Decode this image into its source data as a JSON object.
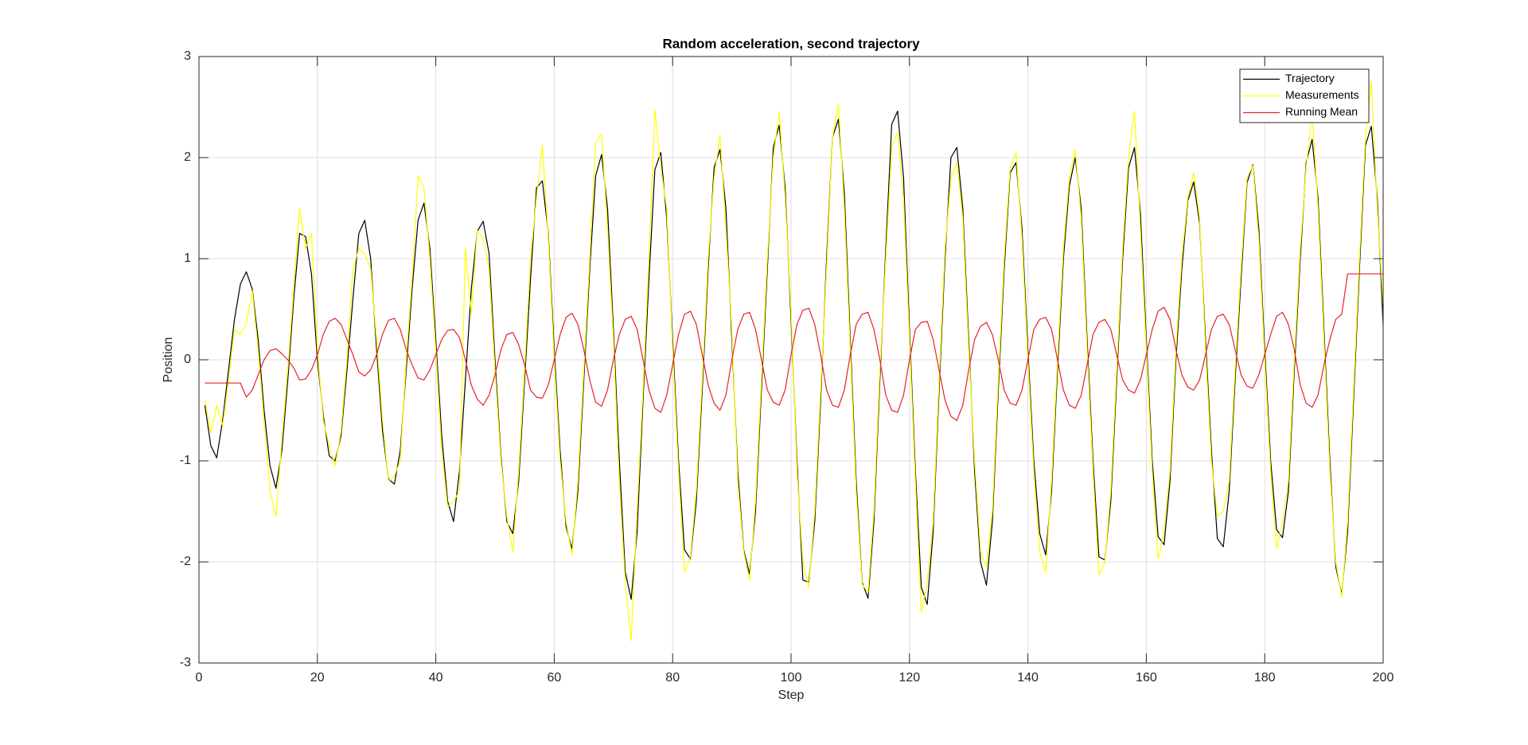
{
  "chart_data": {
    "type": "line",
    "title": "Random acceleration, second trajectory",
    "x_label": "Step",
    "y_label": "Position",
    "x": [
      1,
      2,
      3,
      4,
      5,
      6,
      7,
      8,
      9,
      10,
      11,
      12,
      13,
      14,
      15,
      16,
      17,
      18,
      19,
      20,
      21,
      22,
      23,
      24,
      25,
      26,
      27,
      28,
      29,
      30,
      31,
      32,
      33,
      34,
      35,
      36,
      37,
      38,
      39,
      40,
      41,
      42,
      43,
      44,
      45,
      46,
      47,
      48,
      49,
      50,
      51,
      52,
      53,
      54,
      55,
      56,
      57,
      58,
      59,
      60,
      61,
      62,
      63,
      64,
      65,
      66,
      67,
      68,
      69,
      70,
      71,
      72,
      73,
      74,
      75,
      76,
      77,
      78,
      79,
      80,
      81,
      82,
      83,
      84,
      85,
      86,
      87,
      88,
      89,
      90,
      91,
      92,
      93,
      94,
      95,
      96,
      97,
      98,
      99,
      100,
      101,
      102,
      103,
      104,
      105,
      106,
      107,
      108,
      109,
      110,
      111,
      112,
      113,
      114,
      115,
      116,
      117,
      118,
      119,
      120,
      121,
      122,
      123,
      124,
      125,
      126,
      127,
      128,
      129,
      130,
      131,
      132,
      133,
      134,
      135,
      136,
      137,
      138,
      139,
      140,
      141,
      142,
      143,
      144,
      145,
      146,
      147,
      148,
      149,
      150,
      151,
      152,
      153,
      154,
      155,
      156,
      157,
      158,
      159,
      160,
      161,
      162,
      163,
      164,
      165,
      166,
      167,
      168,
      169,
      170,
      171,
      172,
      173,
      174,
      175,
      176,
      177,
      178,
      179,
      180,
      181,
      182,
      183,
      184,
      185,
      186,
      187,
      188,
      189,
      190,
      191,
      192,
      193,
      194,
      195,
      196,
      197,
      198,
      199,
      200
    ],
    "series": [
      {
        "name": "Trajectory",
        "color": "#000000",
        "values": [
          -0.45,
          -0.85,
          -0.97,
          -0.6,
          -0.1,
          0.4,
          0.75,
          0.87,
          0.7,
          0.2,
          -0.5,
          -1.05,
          -1.27,
          -0.9,
          -0.2,
          0.6,
          1.25,
          1.22,
          0.85,
          0.0,
          -0.55,
          -0.95,
          -1.0,
          -0.75,
          -0.1,
          0.6,
          1.25,
          1.38,
          1.0,
          0.1,
          -0.7,
          -1.18,
          -1.23,
          -0.9,
          -0.1,
          0.7,
          1.38,
          1.55,
          1.1,
          0.2,
          -0.75,
          -1.4,
          -1.6,
          -1.1,
          -0.2,
          0.7,
          1.27,
          1.37,
          1.05,
          0.0,
          -0.95,
          -1.6,
          -1.72,
          -1.2,
          -0.2,
          0.8,
          1.7,
          1.77,
          1.25,
          0.1,
          -0.9,
          -1.65,
          -1.87,
          -1.3,
          -0.2,
          0.9,
          1.82,
          2.03,
          1.5,
          0.3,
          -1.0,
          -2.1,
          -2.37,
          -1.7,
          -0.4,
          0.8,
          1.88,
          2.05,
          1.4,
          0.2,
          -1.0,
          -1.88,
          -1.97,
          -1.4,
          -0.3,
          0.9,
          1.9,
          2.08,
          1.5,
          0.2,
          -1.1,
          -1.88,
          -2.12,
          -1.5,
          -0.3,
          0.9,
          2.1,
          2.32,
          1.7,
          0.4,
          -1.0,
          -2.18,
          -2.2,
          -1.6,
          -0.4,
          1.0,
          2.2,
          2.38,
          1.65,
          0.2,
          -1.2,
          -2.2,
          -2.36,
          -1.6,
          -0.2,
          1.1,
          2.33,
          2.46,
          1.8,
          0.3,
          -1.1,
          -2.25,
          -2.42,
          -1.7,
          -0.3,
          1.0,
          2.0,
          2.1,
          1.5,
          0.2,
          -1.1,
          -2.0,
          -2.23,
          -1.6,
          -0.3,
          0.9,
          1.85,
          1.95,
          1.3,
          0.1,
          -1.0,
          -1.72,
          -1.93,
          -1.3,
          -0.1,
          1.0,
          1.72,
          2.0,
          1.5,
          0.2,
          -1.0,
          -1.95,
          -1.98,
          -1.4,
          -0.2,
          1.0,
          1.9,
          2.1,
          1.45,
          0.2,
          -1.0,
          -1.75,
          -1.83,
          -1.2,
          0.0,
          0.9,
          1.57,
          1.76,
          1.35,
          0.2,
          -0.9,
          -1.77,
          -1.85,
          -1.3,
          -0.2,
          0.8,
          1.75,
          1.93,
          1.3,
          0.1,
          -1.0,
          -1.68,
          -1.76,
          -1.3,
          -0.1,
          1.0,
          1.95,
          2.18,
          1.6,
          0.3,
          -1.0,
          -2.05,
          -2.32,
          -1.7,
          -0.4,
          0.9,
          2.12,
          2.31,
          1.6,
          0.35
        ]
      },
      {
        "name": "Measurements",
        "color": "#ffff00",
        "values": [
          -0.4,
          -0.72,
          -0.45,
          -0.65,
          -0.2,
          0.3,
          0.25,
          0.35,
          0.68,
          0.1,
          -0.6,
          -1.3,
          -1.55,
          -0.8,
          -0.1,
          0.7,
          1.5,
          1.1,
          1.25,
          0.1,
          -0.6,
          -0.85,
          -1.05,
          -0.7,
          0.0,
          0.9,
          1.1,
          1.05,
          0.9,
          0.2,
          -0.6,
          -1.2,
          -1.15,
          -1.0,
          0.0,
          0.8,
          1.82,
          1.7,
          1.0,
          0.1,
          -0.9,
          -1.45,
          -1.4,
          -1.3,
          1.1,
          0.45,
          1.28,
          1.2,
          0.9,
          -0.1,
          -1.0,
          -1.55,
          -1.9,
          -1.1,
          -0.1,
          1.0,
          1.6,
          2.12,
          1.2,
          0.0,
          -1.0,
          -1.6,
          -1.93,
          -1.2,
          -0.1,
          1.0,
          2.15,
          2.23,
          1.3,
          0.2,
          -1.2,
          -2.2,
          -2.78,
          -1.5,
          -0.3,
          1.0,
          2.47,
          1.9,
          1.5,
          0.1,
          -1.1,
          -2.1,
          -1.95,
          -1.3,
          -0.2,
          1.0,
          1.8,
          2.22,
          1.3,
          0.3,
          -1.2,
          -1.9,
          -2.18,
          -1.4,
          -0.2,
          1.0,
          2.0,
          2.45,
          1.6,
          0.5,
          -1.1,
          -2.0,
          -2.25,
          -1.5,
          -0.3,
          0.9,
          2.2,
          2.53,
          1.5,
          0.1,
          -1.3,
          -2.22,
          -2.3,
          -1.5,
          -0.1,
          1.0,
          2.1,
          2.25,
          1.6,
          0.2,
          -1.2,
          -2.5,
          -2.2,
          -1.6,
          -0.2,
          1.1,
          1.8,
          1.95,
          1.4,
          0.1,
          -1.0,
          -1.9,
          -2.05,
          -1.5,
          -0.2,
          1.0,
          1.9,
          2.05,
          1.2,
          0.0,
          -1.1,
          -1.9,
          -2.1,
          -1.2,
          0.0,
          1.1,
          1.8,
          2.08,
          1.4,
          0.1,
          -1.1,
          -2.13,
          -2.0,
          -1.3,
          -0.1,
          1.1,
          2.0,
          2.46,
          1.3,
          0.1,
          -1.1,
          -1.97,
          -1.7,
          -1.1,
          0.1,
          1.0,
          1.6,
          1.85,
          1.4,
          0.1,
          -1.0,
          -1.55,
          -1.5,
          -1.2,
          -0.1,
          0.9,
          1.8,
          1.92,
          1.2,
          0.0,
          -1.1,
          -1.87,
          -1.6,
          -1.2,
          0.0,
          1.1,
          1.9,
          2.45,
          1.5,
          0.2,
          -1.1,
          -2.0,
          -2.35,
          -1.6,
          -0.3,
          1.0,
          2.2,
          2.75,
          1.5,
          0.55
        ]
      },
      {
        "name": "Running Mean",
        "color": "#e8202a",
        "values": [
          -0.23,
          -0.23,
          -0.23,
          -0.23,
          -0.23,
          -0.23,
          -0.23,
          -0.37,
          -0.3,
          -0.15,
          0.0,
          0.09,
          0.11,
          0.06,
          0.0,
          -0.08,
          -0.2,
          -0.19,
          -0.1,
          0.05,
          0.25,
          0.38,
          0.41,
          0.35,
          0.2,
          0.05,
          -0.12,
          -0.16,
          -0.1,
          0.05,
          0.25,
          0.39,
          0.41,
          0.3,
          0.1,
          -0.05,
          -0.18,
          -0.2,
          -0.1,
          0.05,
          0.2,
          0.29,
          0.3,
          0.22,
          0.0,
          -0.25,
          -0.39,
          -0.45,
          -0.35,
          -0.15,
          0.1,
          0.25,
          0.27,
          0.15,
          -0.05,
          -0.3,
          -0.37,
          -0.38,
          -0.25,
          0.0,
          0.25,
          0.42,
          0.46,
          0.35,
          0.1,
          -0.2,
          -0.42,
          -0.46,
          -0.3,
          0.0,
          0.25,
          0.4,
          0.43,
          0.3,
          0.0,
          -0.3,
          -0.48,
          -0.52,
          -0.35,
          -0.05,
          0.25,
          0.45,
          0.48,
          0.35,
          0.05,
          -0.25,
          -0.43,
          -0.5,
          -0.35,
          0.0,
          0.3,
          0.45,
          0.47,
          0.3,
          0.0,
          -0.3,
          -0.42,
          -0.45,
          -0.3,
          0.05,
          0.35,
          0.49,
          0.51,
          0.35,
          0.05,
          -0.3,
          -0.45,
          -0.47,
          -0.3,
          0.05,
          0.35,
          0.45,
          0.47,
          0.3,
          0.0,
          -0.35,
          -0.5,
          -0.52,
          -0.35,
          0.0,
          0.3,
          0.37,
          0.38,
          0.2,
          -0.1,
          -0.4,
          -0.56,
          -0.6,
          -0.45,
          -0.1,
          0.2,
          0.33,
          0.37,
          0.25,
          0.0,
          -0.3,
          -0.43,
          -0.45,
          -0.3,
          0.0,
          0.3,
          0.4,
          0.42,
          0.3,
          0.0,
          -0.3,
          -0.45,
          -0.48,
          -0.35,
          -0.05,
          0.25,
          0.37,
          0.4,
          0.3,
          0.05,
          -0.2,
          -0.3,
          -0.33,
          -0.2,
          0.05,
          0.3,
          0.48,
          0.52,
          0.4,
          0.1,
          -0.15,
          -0.27,
          -0.3,
          -0.2,
          0.05,
          0.3,
          0.43,
          0.45,
          0.35,
          0.1,
          -0.15,
          -0.26,
          -0.28,
          -0.15,
          0.05,
          0.25,
          0.43,
          0.47,
          0.35,
          0.1,
          -0.25,
          -0.43,
          -0.47,
          -0.35,
          -0.05,
          0.2,
          0.4,
          0.45,
          0.85,
          0.85,
          0.85,
          0.85,
          0.85,
          0.85,
          0.85
        ]
      }
    ],
    "xlim": [
      0,
      200
    ],
    "xticks": [
      0,
      20,
      40,
      60,
      80,
      100,
      120,
      140,
      160,
      180,
      200
    ],
    "ylim": [
      -3,
      3
    ],
    "yticks": [
      -3,
      -2,
      -1,
      0,
      1,
      2,
      3
    ],
    "grid": true,
    "legend": "northeast"
  }
}
